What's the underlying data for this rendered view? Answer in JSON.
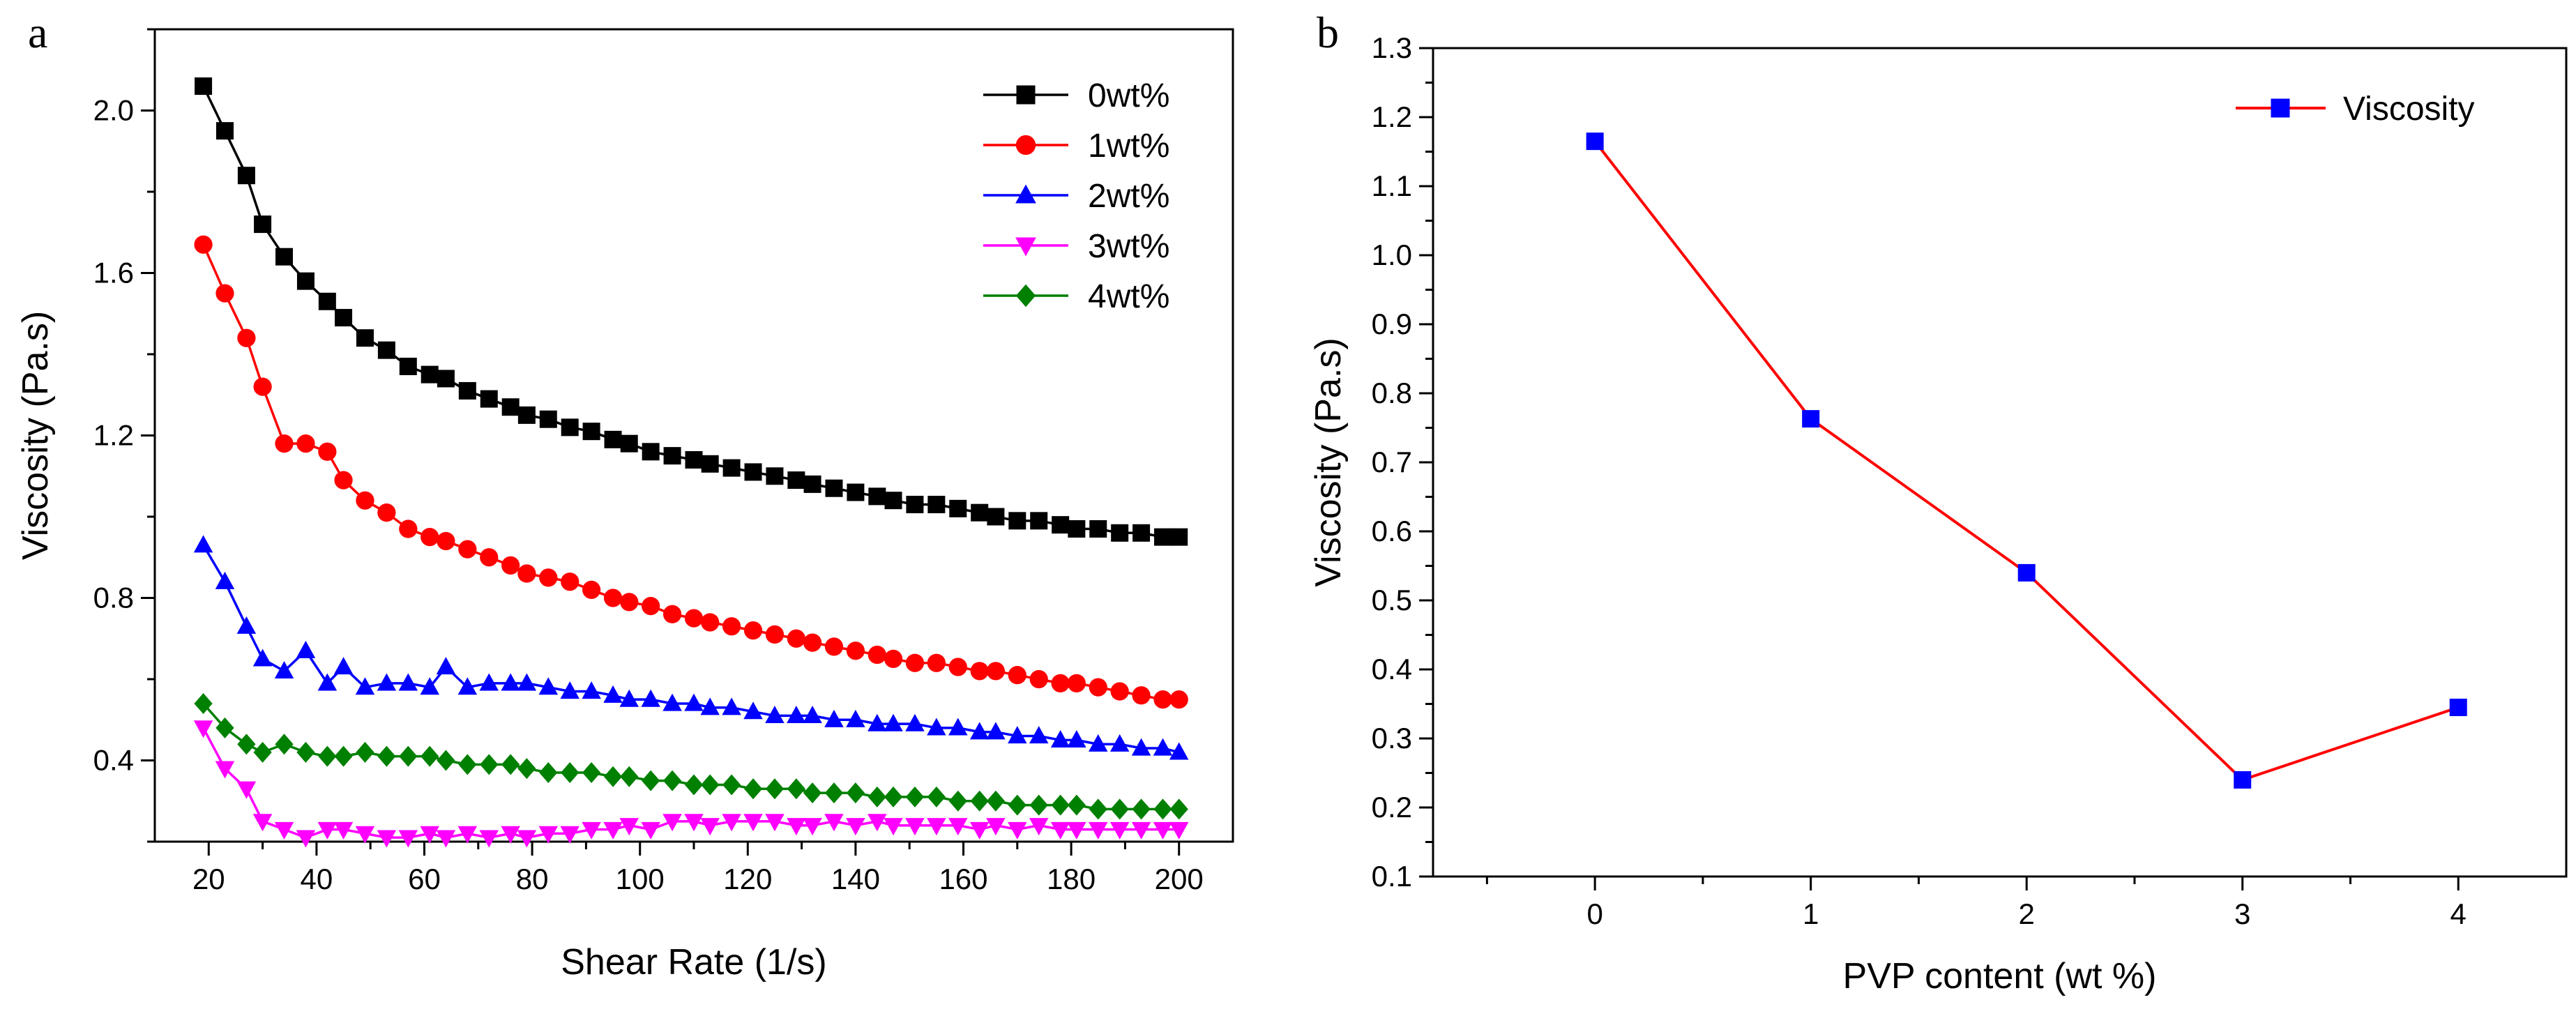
{
  "chart_data": [
    {
      "panel": "a",
      "type": "line",
      "xlabel": "Shear Rate (1/s)",
      "ylabel": "Viscosity (Pa.s)",
      "xlim": [
        10,
        210
      ],
      "ylim": [
        0.2,
        2.2
      ],
      "xticks": [
        20,
        40,
        60,
        80,
        100,
        120,
        140,
        160,
        180,
        200
      ],
      "yticks": [
        0.4,
        0.8,
        1.2,
        1.6,
        2.0
      ],
      "ytick_labels": [
        "0.4",
        "0.8",
        "1.2",
        "1.6",
        "2.0"
      ],
      "legend_position": "top-right",
      "x": [
        19,
        23,
        27,
        30,
        34,
        38,
        42,
        45,
        49,
        53,
        57,
        61,
        64,
        68,
        72,
        76,
        79,
        83,
        87,
        91,
        95,
        98,
        102,
        106,
        110,
        113,
        117,
        121,
        125,
        129,
        132,
        136,
        140,
        144,
        147,
        151,
        155,
        159,
        163,
        166,
        170,
        174,
        178,
        181,
        185,
        189,
        193,
        197,
        200
      ],
      "series": [
        {
          "name": "0wt%",
          "color": "#000000",
          "marker": "square",
          "values": [
            2.06,
            1.95,
            1.84,
            1.72,
            1.64,
            1.58,
            1.53,
            1.49,
            1.44,
            1.41,
            1.37,
            1.35,
            1.34,
            1.31,
            1.29,
            1.27,
            1.25,
            1.24,
            1.22,
            1.21,
            1.19,
            1.18,
            1.16,
            1.15,
            1.14,
            1.13,
            1.12,
            1.11,
            1.1,
            1.09,
            1.08,
            1.07,
            1.06,
            1.05,
            1.04,
            1.03,
            1.03,
            1.02,
            1.01,
            1.0,
            0.99,
            0.99,
            0.98,
            0.97,
            0.97,
            0.96,
            0.96,
            0.95,
            0.95
          ]
        },
        {
          "name": "1wt%",
          "color": "#ff0000",
          "marker": "circle",
          "values": [
            1.67,
            1.55,
            1.44,
            1.32,
            1.18,
            1.18,
            1.16,
            1.09,
            1.04,
            1.01,
            0.97,
            0.95,
            0.94,
            0.92,
            0.9,
            0.88,
            0.86,
            0.85,
            0.84,
            0.82,
            0.8,
            0.79,
            0.78,
            0.76,
            0.75,
            0.74,
            0.73,
            0.72,
            0.71,
            0.7,
            0.69,
            0.68,
            0.67,
            0.66,
            0.65,
            0.64,
            0.64,
            0.63,
            0.62,
            0.62,
            0.61,
            0.6,
            0.59,
            0.59,
            0.58,
            0.57,
            0.56,
            0.55,
            0.55
          ]
        },
        {
          "name": "2wt%",
          "color": "#0000ff",
          "marker": "triangle-up",
          "values": [
            0.93,
            0.84,
            0.73,
            0.65,
            0.62,
            0.67,
            0.59,
            0.63,
            0.58,
            0.59,
            0.59,
            0.58,
            0.63,
            0.58,
            0.59,
            0.59,
            0.59,
            0.58,
            0.57,
            0.57,
            0.56,
            0.55,
            0.55,
            0.54,
            0.54,
            0.53,
            0.53,
            0.52,
            0.51,
            0.51,
            0.51,
            0.5,
            0.5,
            0.49,
            0.49,
            0.49,
            0.48,
            0.48,
            0.47,
            0.47,
            0.46,
            0.46,
            0.45,
            0.45,
            0.44,
            0.44,
            0.43,
            0.43,
            0.42
          ]
        },
        {
          "name": "3wt%",
          "color": "#ff00ff",
          "marker": "triangle-down",
          "values": [
            0.48,
            0.38,
            0.33,
            0.25,
            0.23,
            0.21,
            0.23,
            0.23,
            0.22,
            0.21,
            0.21,
            0.22,
            0.21,
            0.22,
            0.21,
            0.22,
            0.21,
            0.22,
            0.22,
            0.23,
            0.23,
            0.24,
            0.23,
            0.25,
            0.25,
            0.24,
            0.25,
            0.25,
            0.25,
            0.24,
            0.24,
            0.25,
            0.24,
            0.25,
            0.24,
            0.24,
            0.24,
            0.24,
            0.23,
            0.24,
            0.23,
            0.24,
            0.23,
            0.23,
            0.23,
            0.23,
            0.23,
            0.23,
            0.23
          ]
        },
        {
          "name": "4wt%",
          "color": "#008000",
          "marker": "diamond",
          "values": [
            0.54,
            0.48,
            0.44,
            0.42,
            0.44,
            0.42,
            0.41,
            0.41,
            0.42,
            0.41,
            0.41,
            0.41,
            0.4,
            0.39,
            0.39,
            0.39,
            0.38,
            0.37,
            0.37,
            0.37,
            0.36,
            0.36,
            0.35,
            0.35,
            0.34,
            0.34,
            0.34,
            0.33,
            0.33,
            0.33,
            0.32,
            0.32,
            0.32,
            0.31,
            0.31,
            0.31,
            0.31,
            0.3,
            0.3,
            0.3,
            0.29,
            0.29,
            0.29,
            0.29,
            0.28,
            0.28,
            0.28,
            0.28,
            0.28
          ]
        }
      ]
    },
    {
      "panel": "b",
      "type": "line",
      "xlabel": "PVP content (wt %)",
      "ylabel": "Viscosity (Pa.s)",
      "xlim": [
        -0.75,
        4.5
      ],
      "ylim": [
        0.1,
        1.3
      ],
      "xticks": [
        0,
        1,
        2,
        3,
        4
      ],
      "yticks": [
        0.1,
        0.2,
        0.3,
        0.4,
        0.5,
        0.6,
        0.7,
        0.8,
        0.9,
        1.0,
        1.1,
        1.2,
        1.3
      ],
      "ytick_labels": [
        "0.1",
        "0.2",
        "0.3",
        "0.4",
        "0.5",
        "0.6",
        "0.7",
        "0.8",
        "0.9",
        "1.0",
        "1.1",
        "1.2",
        "1.3"
      ],
      "legend_position": "top-right",
      "series": [
        {
          "name": "Viscosity",
          "line_color": "#ff0000",
          "marker_color": "#0000ff",
          "marker": "square",
          "x": [
            0,
            1,
            2,
            3,
            4
          ],
          "values": [
            1.165,
            0.763,
            0.54,
            0.24,
            0.345
          ]
        }
      ]
    }
  ]
}
